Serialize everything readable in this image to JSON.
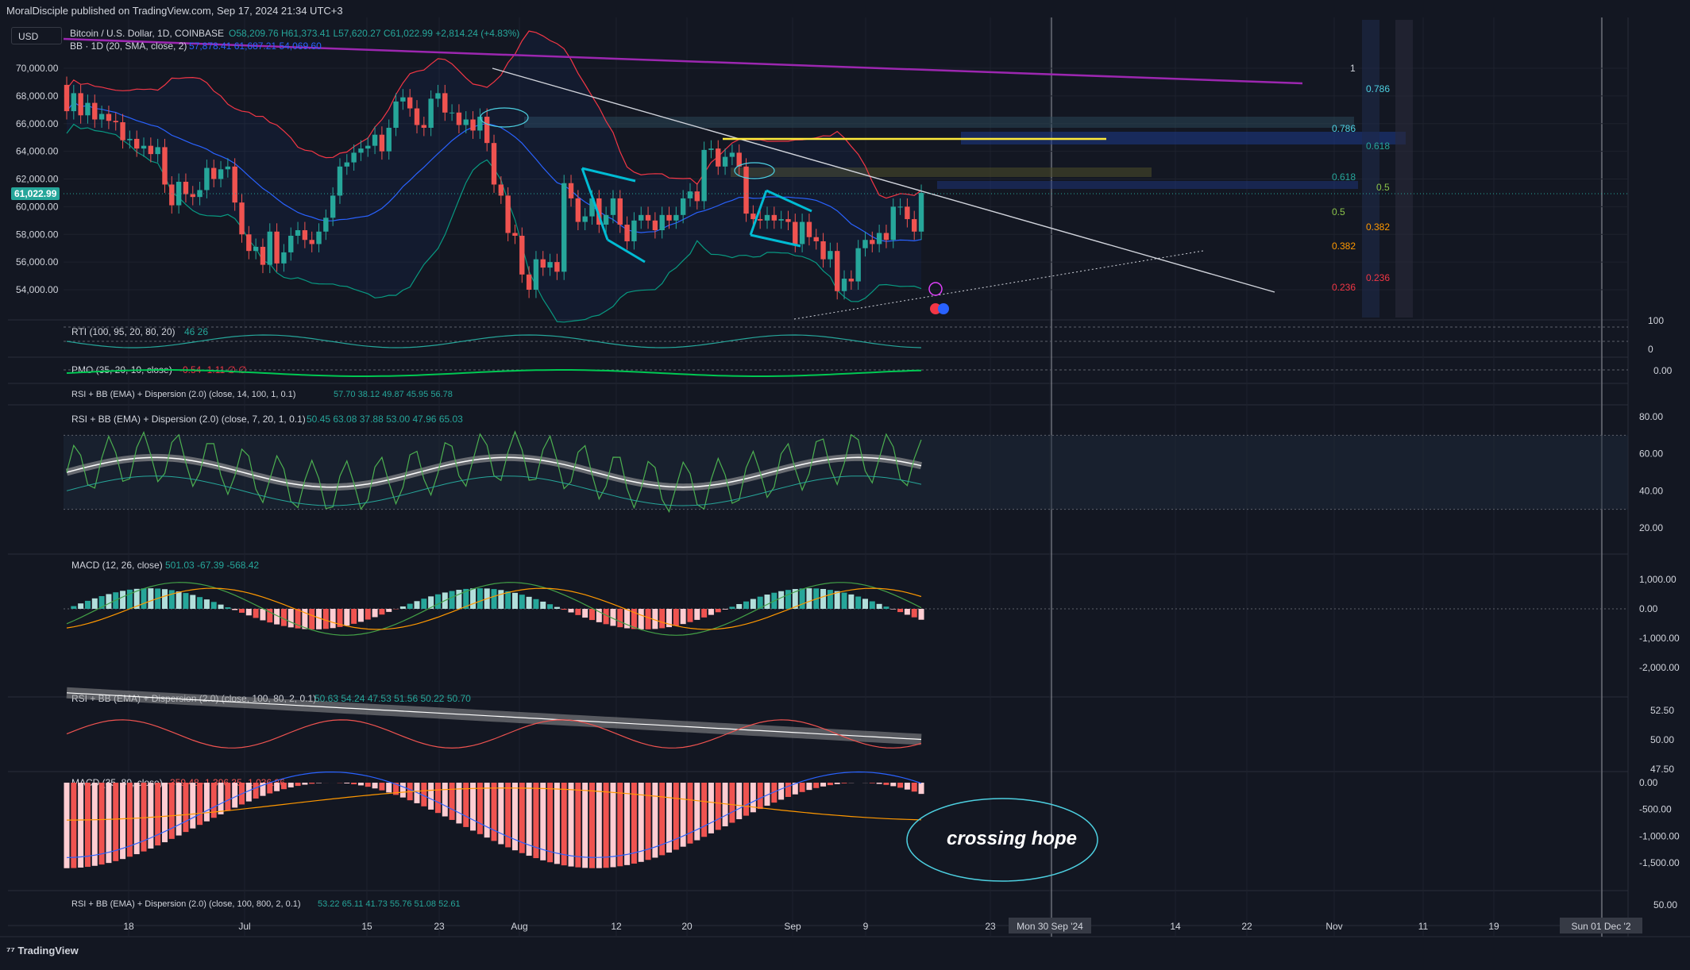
{
  "publisher": "MoralDisciple published on TradingView.com, Sep 17, 2024 21:34 UTC+3",
  "currency_button": "USD",
  "branding": "TradingView",
  "current_price_tag": "61,022.99",
  "colors": {
    "bg": "#131722",
    "grid": "#1e222d",
    "up": "#26a69a",
    "down": "#ef5350",
    "bb_upper": "#f23645",
    "bb_basis": "#2962ff",
    "bb_lower": "#089981",
    "purple_line": "#9c27b0",
    "yellow_line": "#ffeb3b",
    "cyan_flag": "#00bcd4",
    "rsi_green": "#4caf50",
    "orange": "#ff9800",
    "pink_hist": "#ffcdd2"
  },
  "panes": {
    "main": {
      "symbol": "Bitcoin / U.S. Dollar, 1D, COINBASE",
      "ohlc": "O58,209.76 H61,373.41 L57,620.27 C61,022.99 +2,814.24 (+4.83%)",
      "bb_legend": "BB · 1D (20, SMA, close, 2)",
      "bb_values": "57,878.41 61,687.21 54,069.60",
      "y_labels": [
        "70,000.00",
        "68,000.00",
        "66,000.00",
        "64,000.00",
        "62,000.00",
        "60,000.00",
        "58,000.00",
        "56,000.00",
        "54,000.00"
      ]
    },
    "rti": {
      "legend": "RTI (100, 95, 20, 80, 20)",
      "values": "46 26",
      "y_labels": [
        "100",
        "0"
      ]
    },
    "pmo": {
      "legend": "PMO (35, 20, 10, close)",
      "values": "-0.54 -1.11 ∅ ∅",
      "y_labels": [
        "0.00"
      ]
    },
    "rsi1": {
      "legend": "RSI + BB (EMA) + Dispersion (2.0) (close, 14, 100, 1, 0.1)",
      "values": "57.70 38.12 49.87 45.95 56.78"
    },
    "rsi2": {
      "legend": "RSI + BB (EMA) + Dispersion (2.0) (close, 7, 20, 1, 0.1)",
      "values": "50.45 63.08 37.88 53.00 47.96 65.03",
      "y_labels": [
        "80.00",
        "60.00",
        "40.00",
        "20.00"
      ]
    },
    "macd1": {
      "legend": "MACD (12, 26, close)",
      "values": "501.03 -67.39 -568.42",
      "y_labels": [
        "1,000.00",
        "0.00",
        "-1,000.00",
        "-2,000.00"
      ]
    },
    "rsi3": {
      "legend": "RSI + BB (EMA) + Dispersion (2.0) (close, 100, 80, 2, 0.1)",
      "values": "50.63 54.24 47.53 51.56 50.22 50.70",
      "y_labels": [
        "52.50",
        "50.00",
        "47.50"
      ]
    },
    "macd2": {
      "legend": "MACD (35, 80, close)",
      "values": "-359.48 -1,396.35 -1,036.86",
      "y_labels": [
        "0.00",
        "-500.00",
        "-1,000.00",
        "-1,500.00"
      ],
      "annotation": "crossing hope"
    },
    "rsi4": {
      "legend": "RSI + BB (EMA) + Dispersion (2.0) (close, 100, 800, 2, 0.1)",
      "values": "53.22 65.11 41.73 55.76 51.08 52.61",
      "y_labels": [
        "50.00"
      ]
    }
  },
  "fib_labels": {
    "left": [
      "0.786",
      "0.618",
      "0.5",
      "0.382",
      "0.236"
    ],
    "right": [
      "1",
      "0.786",
      "0.618",
      "0.5",
      "0.382",
      "0.236"
    ]
  },
  "x_axis_labels": [
    "18",
    "Jul",
    "15",
    "23",
    "Aug",
    "12",
    "20",
    "Sep",
    "9",
    "23",
    "Mon 30 Sep '24",
    "14",
    "22",
    "Nov",
    "11",
    "19",
    "Sun 01 Dec '2"
  ],
  "chart_data": {
    "type": "candlestick",
    "title": "Bitcoin / U.S. Dollar, 1D, COINBASE",
    "ylim": [
      52500,
      71500
    ],
    "candles": [
      {
        "o": 68800,
        "c": 66900
      },
      {
        "o": 66900,
        "c": 68200
      },
      {
        "o": 68200,
        "c": 66600
      },
      {
        "o": 66600,
        "c": 67500
      },
      {
        "o": 67500,
        "c": 66300
      },
      {
        "o": 66300,
        "c": 66700
      },
      {
        "o": 66700,
        "c": 66200
      },
      {
        "o": 66200,
        "c": 66100
      },
      {
        "o": 66100,
        "c": 64800
      },
      {
        "o": 64800,
        "c": 64900
      },
      {
        "o": 64900,
        "c": 64200
      },
      {
        "o": 64200,
        "c": 64400
      },
      {
        "o": 64400,
        "c": 63800
      },
      {
        "o": 63800,
        "c": 64300
      },
      {
        "o": 64300,
        "c": 61600
      },
      {
        "o": 61600,
        "c": 60100
      },
      {
        "o": 60100,
        "c": 61800
      },
      {
        "o": 61800,
        "c": 60900
      },
      {
        "o": 60900,
        "c": 60700
      },
      {
        "o": 60700,
        "c": 61200
      },
      {
        "o": 61200,
        "c": 62800
      },
      {
        "o": 62800,
        "c": 62000
      },
      {
        "o": 62000,
        "c": 62700
      },
      {
        "o": 62700,
        "c": 62900
      },
      {
        "o": 62900,
        "c": 60300
      },
      {
        "o": 60300,
        "c": 58000
      },
      {
        "o": 58000,
        "c": 56800
      },
      {
        "o": 56800,
        "c": 57100
      },
      {
        "o": 57100,
        "c": 55800
      },
      {
        "o": 55800,
        "c": 58200
      },
      {
        "o": 58200,
        "c": 55900
      },
      {
        "o": 55900,
        "c": 56700
      },
      {
        "o": 56700,
        "c": 57900
      },
      {
        "o": 57900,
        "c": 58300
      },
      {
        "o": 58300,
        "c": 57600
      },
      {
        "o": 57600,
        "c": 57300
      },
      {
        "o": 57300,
        "c": 58200
      },
      {
        "o": 58200,
        "c": 59200
      },
      {
        "o": 59200,
        "c": 60800
      },
      {
        "o": 60800,
        "c": 62900
      },
      {
        "o": 62900,
        "c": 63200
      },
      {
        "o": 63200,
        "c": 63900
      },
      {
        "o": 63900,
        "c": 64200
      },
      {
        "o": 64200,
        "c": 64400
      },
      {
        "o": 64400,
        "c": 65200
      },
      {
        "o": 65200,
        "c": 64000
      },
      {
        "o": 64000,
        "c": 65700
      },
      {
        "o": 65700,
        "c": 67600
      },
      {
        "o": 67600,
        "c": 67900
      },
      {
        "o": 67900,
        "c": 67100
      },
      {
        "o": 67100,
        "c": 65900
      },
      {
        "o": 65900,
        "c": 65700
      },
      {
        "o": 65700,
        "c": 67800
      },
      {
        "o": 67800,
        "c": 68200
      },
      {
        "o": 68200,
        "c": 66800
      },
      {
        "o": 66800,
        "c": 66800
      },
      {
        "o": 66800,
        "c": 65900
      },
      {
        "o": 65900,
        "c": 66300
      },
      {
        "o": 66300,
        "c": 65500
      },
      {
        "o": 65500,
        "c": 66500
      },
      {
        "o": 66500,
        "c": 64600
      },
      {
        "o": 64600,
        "c": 61600
      },
      {
        "o": 61600,
        "c": 60800
      },
      {
        "o": 60800,
        "c": 58100
      },
      {
        "o": 58100,
        "c": 57900
      },
      {
        "o": 57900,
        "c": 55100
      },
      {
        "o": 55100,
        "c": 54000
      },
      {
        "o": 54000,
        "c": 56200
      },
      {
        "o": 56200,
        "c": 55600
      },
      {
        "o": 55600,
        "c": 56000
      },
      {
        "o": 56000,
        "c": 55300
      },
      {
        "o": 55300,
        "c": 61700
      },
      {
        "o": 61700,
        "c": 60600
      },
      {
        "o": 60600,
        "c": 58900
      },
      {
        "o": 58900,
        "c": 59300
      },
      {
        "o": 59300,
        "c": 60600
      },
      {
        "o": 60600,
        "c": 58700
      },
      {
        "o": 58700,
        "c": 59400
      },
      {
        "o": 59400,
        "c": 60600
      },
      {
        "o": 60600,
        "c": 58700
      },
      {
        "o": 58700,
        "c": 57500
      },
      {
        "o": 57500,
        "c": 59000
      },
      {
        "o": 59000,
        "c": 59400
      },
      {
        "o": 59400,
        "c": 59000
      },
      {
        "o": 59000,
        "c": 58300
      },
      {
        "o": 58300,
        "c": 59400
      },
      {
        "o": 59400,
        "c": 59000
      },
      {
        "o": 59000,
        "c": 59400
      },
      {
        "o": 59400,
        "c": 60600
      },
      {
        "o": 60600,
        "c": 61100
      },
      {
        "o": 61100,
        "c": 60400
      },
      {
        "o": 60400,
        "c": 64100
      },
      {
        "o": 64100,
        "c": 64200
      },
      {
        "o": 64200,
        "c": 62900
      },
      {
        "o": 62900,
        "c": 63600
      },
      {
        "o": 63600,
        "c": 63900
      },
      {
        "o": 63900,
        "c": 62900
      },
      {
        "o": 62900,
        "c": 59500
      },
      {
        "o": 59500,
        "c": 59100
      },
      {
        "o": 59100,
        "c": 59000
      },
      {
        "o": 59000,
        "c": 59400
      },
      {
        "o": 59400,
        "c": 59000
      },
      {
        "o": 59000,
        "c": 59100
      },
      {
        "o": 59100,
        "c": 58900
      },
      {
        "o": 58900,
        "c": 57300
      },
      {
        "o": 57300,
        "c": 58900
      },
      {
        "o": 58900,
        "c": 57800
      },
      {
        "o": 57800,
        "c": 57500
      },
      {
        "o": 57500,
        "c": 56200
      },
      {
        "o": 56200,
        "c": 56800
      },
      {
        "o": 56800,
        "c": 53900
      },
      {
        "o": 53900,
        "c": 54800
      },
      {
        "o": 54800,
        "c": 54600
      },
      {
        "o": 54600,
        "c": 57000
      },
      {
        "o": 57000,
        "c": 57600
      },
      {
        "o": 57600,
        "c": 57300
      },
      {
        "o": 57300,
        "c": 58100
      },
      {
        "o": 58100,
        "c": 57600
      },
      {
        "o": 57600,
        "c": 60000
      },
      {
        "o": 60000,
        "c": 60000
      },
      {
        "o": 60000,
        "c": 59100
      },
      {
        "o": 59100,
        "c": 58200
      },
      {
        "o": 58200,
        "c": 61000
      }
    ],
    "annotations": [
      "crossing hope"
    ]
  }
}
